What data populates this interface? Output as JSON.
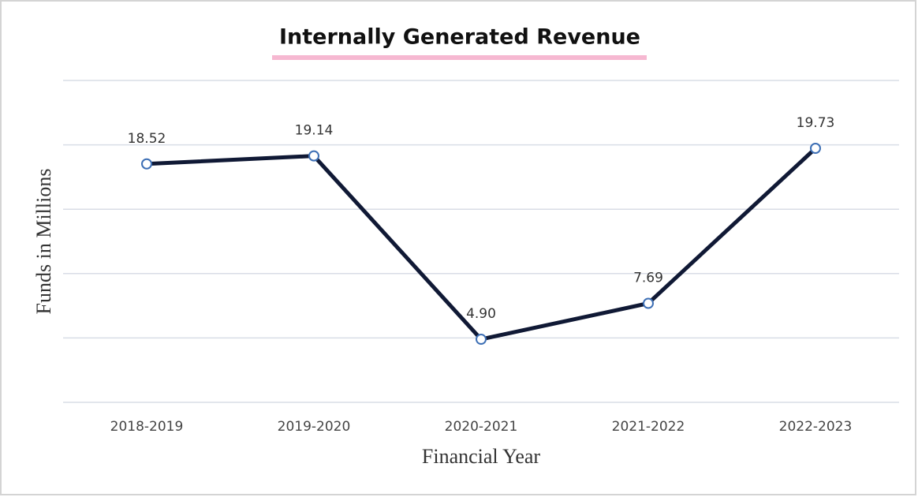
{
  "chart_data": {
    "type": "line",
    "title": "Internally Generated Revenue",
    "x_label": "Financial Year",
    "y_label": "Funds in Millions",
    "categories": [
      "2018-2019",
      "2019-2020",
      "2020-2021",
      "2021-2022",
      "2022-2023"
    ],
    "series": [
      {
        "name": "Funds",
        "color": "#101935",
        "values": [
          18.52,
          19.14,
          4.9,
          7.69,
          19.73
        ],
        "value_labels": [
          "18.52",
          "19.14",
          "4.90",
          "7.69",
          "19.73"
        ]
      }
    ],
    "ylim": [
      0,
      25
    ],
    "yticks": [
      0,
      5,
      10,
      15,
      20,
      25
    ],
    "grid": true
  }
}
